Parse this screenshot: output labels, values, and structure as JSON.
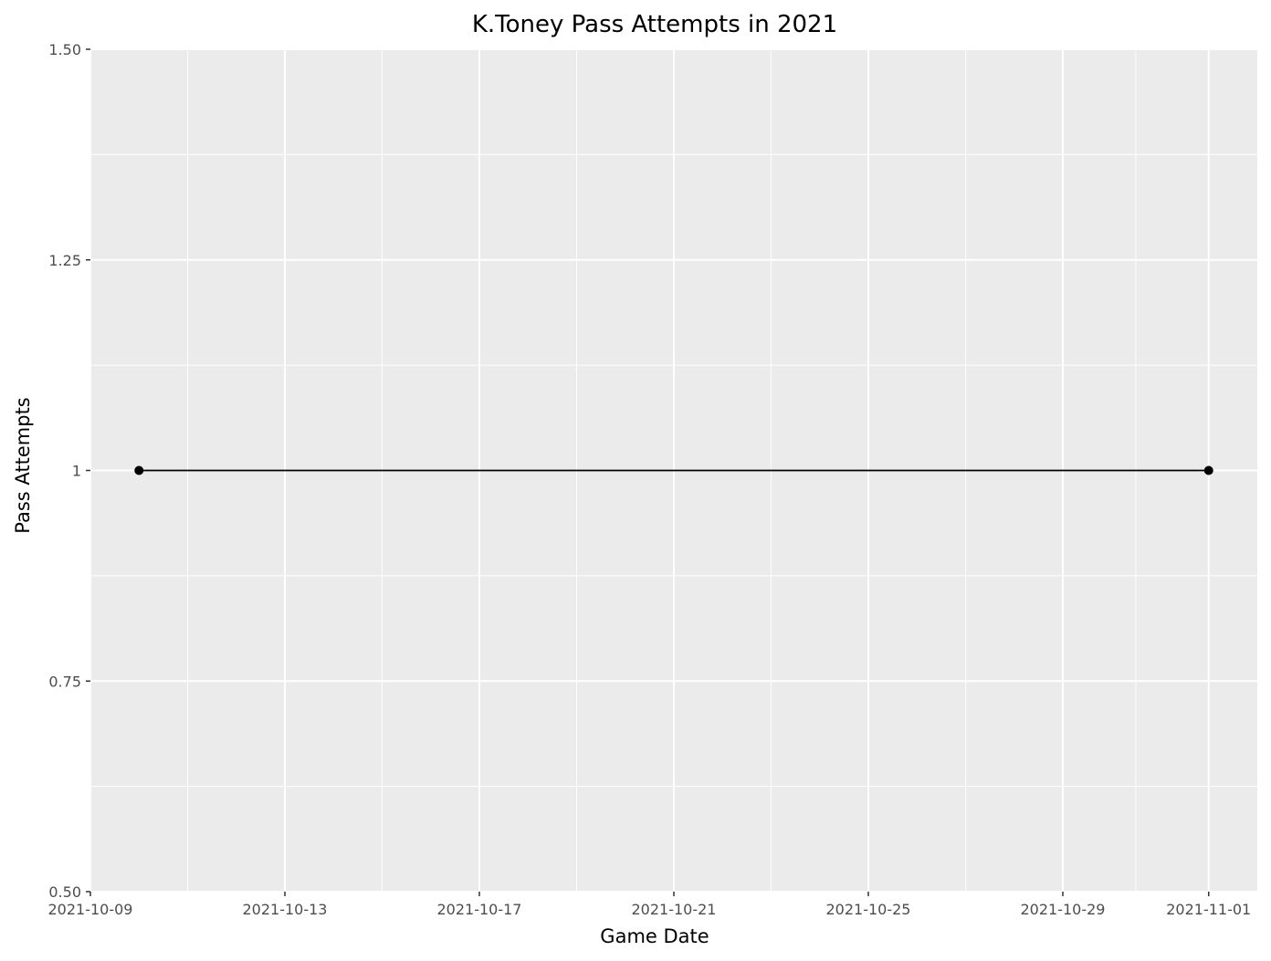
{
  "chart_data": {
    "type": "line",
    "title": "K.Toney Pass Attempts in 2021",
    "xlabel": "Game Date",
    "ylabel": "Pass Attempts",
    "x_type": "date",
    "xlim": [
      "2021-10-09",
      "2021-11-02"
    ],
    "ylim": [
      0.5,
      1.5
    ],
    "x_ticks": [
      "2021-10-09",
      "2021-10-13",
      "2021-10-17",
      "2021-10-21",
      "2021-10-25",
      "2021-10-29",
      "2021-11-01"
    ],
    "y_ticks": [
      0.5,
      0.75,
      1,
      1.25,
      1.5
    ],
    "y_tick_labels": [
      "0.50",
      "0.75",
      "1",
      "1.25",
      "1.50"
    ],
    "grid": true,
    "series": [
      {
        "x": [
          "2021-10-10",
          "2021-11-01"
        ],
        "y": [
          1,
          1
        ],
        "color": "#000000"
      }
    ],
    "colors": {
      "panel": "#ebebeb",
      "grid": "#ffffff",
      "line": "#000000"
    }
  }
}
